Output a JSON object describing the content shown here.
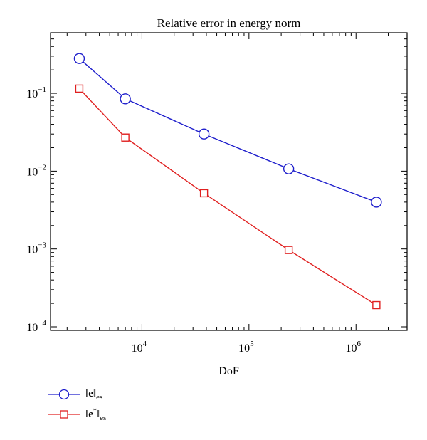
{
  "chart_data": {
    "type": "line",
    "title": "Relative error in energy norm",
    "xlabel": "DoF",
    "ylabel": "",
    "xscale": "log",
    "yscale": "log",
    "xlim": [
      1400,
      3000000
    ],
    "ylim": [
      9e-05,
      0.6
    ],
    "x_ticks": [
      {
        "value": 10000,
        "base": "10",
        "exp": "4"
      },
      {
        "value": 100000,
        "base": "10",
        "exp": "5"
      },
      {
        "value": 1000000,
        "base": "10",
        "exp": "6"
      }
    ],
    "y_ticks": [
      {
        "value": 0.1,
        "base": "10",
        "exp": "−1"
      },
      {
        "value": 0.01,
        "base": "10",
        "exp": "−2"
      },
      {
        "value": 0.001,
        "base": "10",
        "exp": "−3"
      },
      {
        "value": 0.0001,
        "base": "10",
        "exp": "−4"
      }
    ],
    "grid": false,
    "legend_position": "bottom-left, outside plot",
    "series": [
      {
        "name": "‖e‖es",
        "color": "#1f1fcc",
        "marker": "circle",
        "x": [
          2600,
          7000,
          38000,
          235000,
          1550000
        ],
        "y": [
          0.28,
          0.085,
          0.03,
          0.0107,
          0.004
        ]
      },
      {
        "name": "‖e*‖es",
        "color": "#e02020",
        "marker": "square",
        "x": [
          2600,
          7000,
          38000,
          235000,
          1550000
        ],
        "y": [
          0.115,
          0.027,
          0.0052,
          0.00097,
          0.00019
        ]
      }
    ]
  },
  "legend": {
    "items": [
      {
        "norm_open": "‖",
        "symbol": "e",
        "star": "",
        "norm_close": "‖",
        "subscript": "es"
      },
      {
        "norm_open": "‖",
        "symbol": "e",
        "star": "*",
        "norm_close": "‖",
        "subscript": "es"
      }
    ]
  }
}
